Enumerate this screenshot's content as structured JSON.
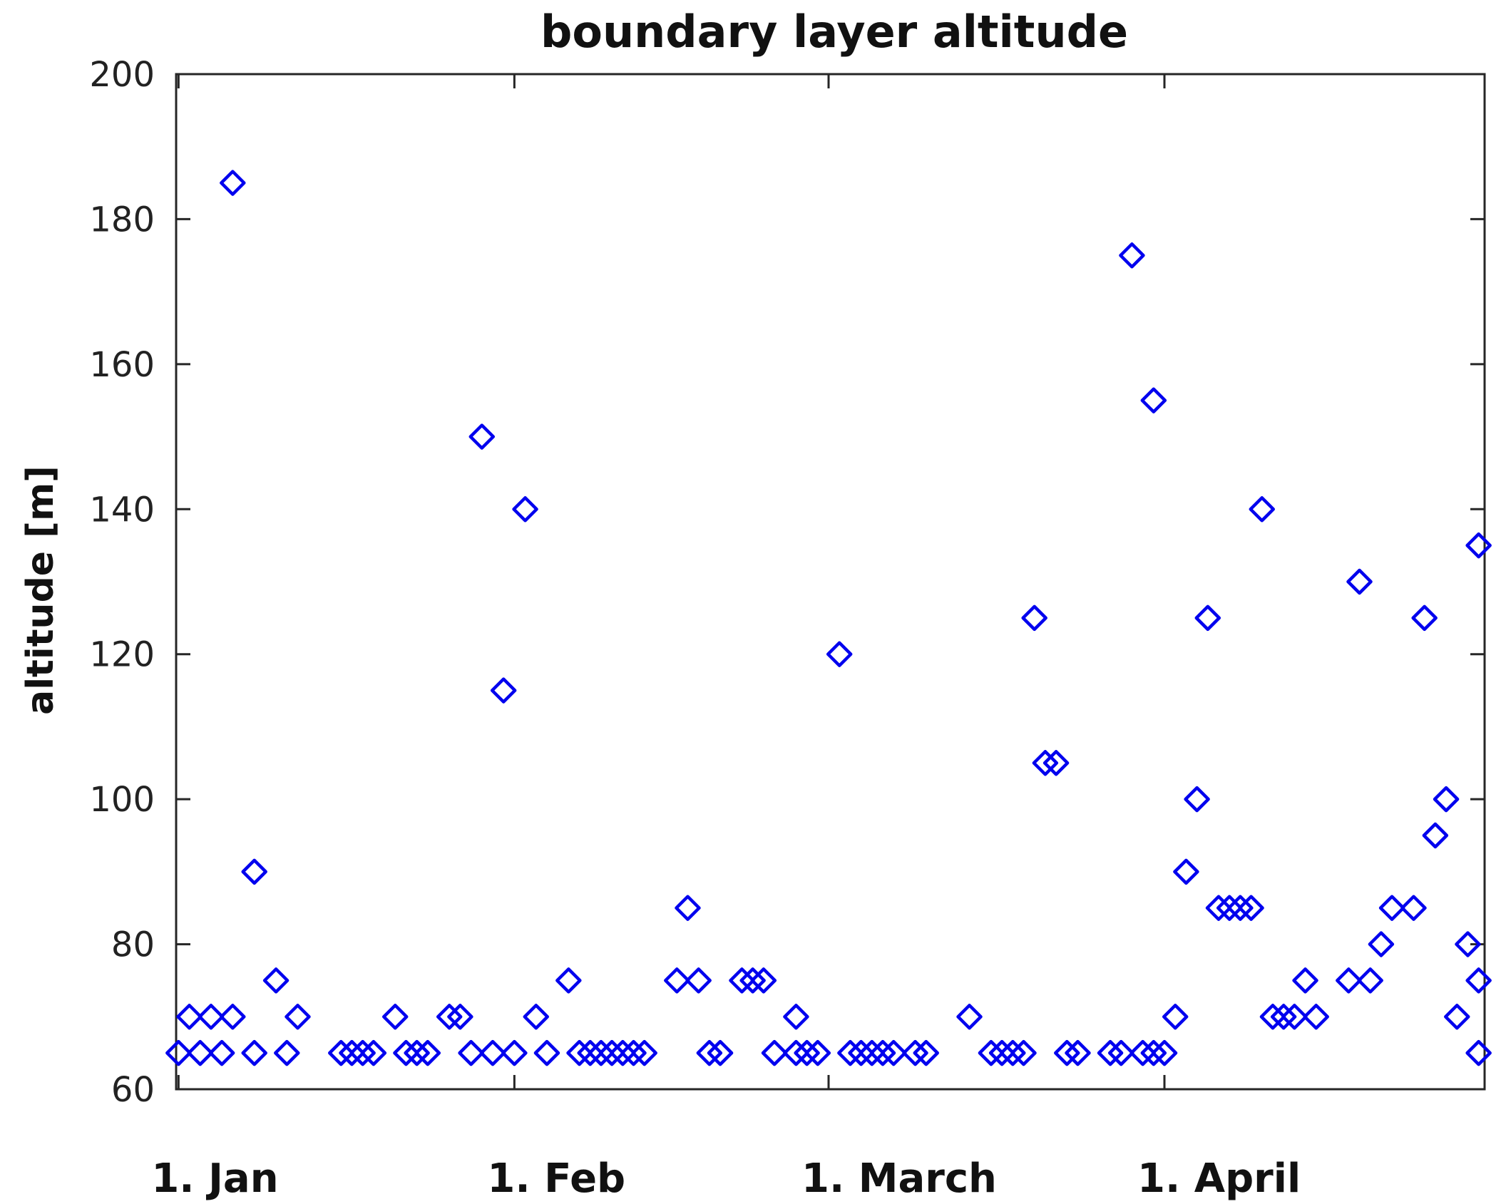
{
  "chart_data": {
    "type": "scatter",
    "title": "boundary layer altitude",
    "xlabel": "",
    "ylabel": "altitude [m]",
    "ylim": [
      60,
      200
    ],
    "yticks": [
      60,
      80,
      100,
      120,
      140,
      160,
      180,
      200
    ],
    "xlim": [
      "2016-01-01",
      "2016-04-30"
    ],
    "xticks": [
      {
        "date": "2016-01-01",
        "label": "1. Jan"
      },
      {
        "date": "2016-02-01",
        "label": "1. Feb"
      },
      {
        "date": "2016-03-01",
        "label": "1. March"
      },
      {
        "date": "2016-04-01",
        "label": "1. April"
      }
    ],
    "marker": "diamond",
    "marker_color": "#0000ee",
    "grid": false,
    "points": [
      {
        "x": "2016-01-01",
        "y": 65
      },
      {
        "x": "2016-01-02",
        "y": 70
      },
      {
        "x": "2016-01-03",
        "y": 65
      },
      {
        "x": "2016-01-04",
        "y": 70
      },
      {
        "x": "2016-01-05",
        "y": 65
      },
      {
        "x": "2016-01-06",
        "y": 185
      },
      {
        "x": "2016-01-06",
        "y": 70
      },
      {
        "x": "2016-01-08",
        "y": 90
      },
      {
        "x": "2016-01-08",
        "y": 65
      },
      {
        "x": "2016-01-10",
        "y": 75
      },
      {
        "x": "2016-01-11",
        "y": 65
      },
      {
        "x": "2016-01-12",
        "y": 70
      },
      {
        "x": "2016-01-16",
        "y": 65
      },
      {
        "x": "2016-01-17",
        "y": 65
      },
      {
        "x": "2016-01-18",
        "y": 65
      },
      {
        "x": "2016-01-19",
        "y": 65
      },
      {
        "x": "2016-01-21",
        "y": 70
      },
      {
        "x": "2016-01-22",
        "y": 65
      },
      {
        "x": "2016-01-23",
        "y": 65
      },
      {
        "x": "2016-01-24",
        "y": 65
      },
      {
        "x": "2016-01-26",
        "y": 70
      },
      {
        "x": "2016-01-27",
        "y": 70
      },
      {
        "x": "2016-01-28",
        "y": 65
      },
      {
        "x": "2016-01-29",
        "y": 150
      },
      {
        "x": "2016-01-30",
        "y": 65
      },
      {
        "x": "2016-01-31",
        "y": 115
      },
      {
        "x": "2016-02-01",
        "y": 65
      },
      {
        "x": "2016-02-02",
        "y": 140
      },
      {
        "x": "2016-02-03",
        "y": 70
      },
      {
        "x": "2016-02-04",
        "y": 65
      },
      {
        "x": "2016-02-06",
        "y": 75
      },
      {
        "x": "2016-02-07",
        "y": 65
      },
      {
        "x": "2016-02-08",
        "y": 65
      },
      {
        "x": "2016-02-09",
        "y": 65
      },
      {
        "x": "2016-02-10",
        "y": 65
      },
      {
        "x": "2016-02-11",
        "y": 65
      },
      {
        "x": "2016-02-12",
        "y": 65
      },
      {
        "x": "2016-02-13",
        "y": 65
      },
      {
        "x": "2016-02-16",
        "y": 75
      },
      {
        "x": "2016-02-17",
        "y": 85
      },
      {
        "x": "2016-02-18",
        "y": 75
      },
      {
        "x": "2016-02-19",
        "y": 65
      },
      {
        "x": "2016-02-20",
        "y": 65
      },
      {
        "x": "2016-02-22",
        "y": 75
      },
      {
        "x": "2016-02-23",
        "y": 75
      },
      {
        "x": "2016-02-24",
        "y": 75
      },
      {
        "x": "2016-02-25",
        "y": 65
      },
      {
        "x": "2016-02-27",
        "y": 65
      },
      {
        "x": "2016-02-27",
        "y": 70
      },
      {
        "x": "2016-02-28",
        "y": 65
      },
      {
        "x": "2016-02-29",
        "y": 65
      },
      {
        "x": "2016-03-02",
        "y": 120
      },
      {
        "x": "2016-03-03",
        "y": 65
      },
      {
        "x": "2016-03-04",
        "y": 65
      },
      {
        "x": "2016-03-05",
        "y": 65
      },
      {
        "x": "2016-03-06",
        "y": 65
      },
      {
        "x": "2016-03-07",
        "y": 65
      },
      {
        "x": "2016-03-09",
        "y": 65
      },
      {
        "x": "2016-03-10",
        "y": 65
      },
      {
        "x": "2016-03-14",
        "y": 70
      },
      {
        "x": "2016-03-16",
        "y": 65
      },
      {
        "x": "2016-03-17",
        "y": 65
      },
      {
        "x": "2016-03-18",
        "y": 65
      },
      {
        "x": "2016-03-19",
        "y": 65
      },
      {
        "x": "2016-03-20",
        "y": 125
      },
      {
        "x": "2016-03-21",
        "y": 105
      },
      {
        "x": "2016-03-22",
        "y": 105
      },
      {
        "x": "2016-03-23",
        "y": 65
      },
      {
        "x": "2016-03-24",
        "y": 65
      },
      {
        "x": "2016-03-27",
        "y": 65
      },
      {
        "x": "2016-03-28",
        "y": 65
      },
      {
        "x": "2016-03-29",
        "y": 175
      },
      {
        "x": "2016-03-30",
        "y": 65
      },
      {
        "x": "2016-03-31",
        "y": 155
      },
      {
        "x": "2016-03-31",
        "y": 65
      },
      {
        "x": "2016-04-01",
        "y": 65
      },
      {
        "x": "2016-04-02",
        "y": 70
      },
      {
        "x": "2016-04-03",
        "y": 90
      },
      {
        "x": "2016-04-04",
        "y": 100
      },
      {
        "x": "2016-04-05",
        "y": 125
      },
      {
        "x": "2016-04-06",
        "y": 85
      },
      {
        "x": "2016-04-07",
        "y": 85
      },
      {
        "x": "2016-04-08",
        "y": 85
      },
      {
        "x": "2016-04-09",
        "y": 85
      },
      {
        "x": "2016-04-10",
        "y": 140
      },
      {
        "x": "2016-04-11",
        "y": 70
      },
      {
        "x": "2016-04-12",
        "y": 70
      },
      {
        "x": "2016-04-13",
        "y": 70
      },
      {
        "x": "2016-04-14",
        "y": 75
      },
      {
        "x": "2016-04-15",
        "y": 70
      },
      {
        "x": "2016-04-18",
        "y": 75
      },
      {
        "x": "2016-04-19",
        "y": 130
      },
      {
        "x": "2016-04-20",
        "y": 75
      },
      {
        "x": "2016-04-21",
        "y": 80
      },
      {
        "x": "2016-04-22",
        "y": 85
      },
      {
        "x": "2016-04-24",
        "y": 85
      },
      {
        "x": "2016-04-25",
        "y": 125
      },
      {
        "x": "2016-04-26",
        "y": 95
      },
      {
        "x": "2016-04-27",
        "y": 100
      },
      {
        "x": "2016-04-28",
        "y": 70
      },
      {
        "x": "2016-04-29",
        "y": 80
      },
      {
        "x": "2016-04-30",
        "y": 65
      },
      {
        "x": "2016-04-30",
        "y": 75
      },
      {
        "x": "2016-04-30",
        "y": 135
      }
    ]
  }
}
